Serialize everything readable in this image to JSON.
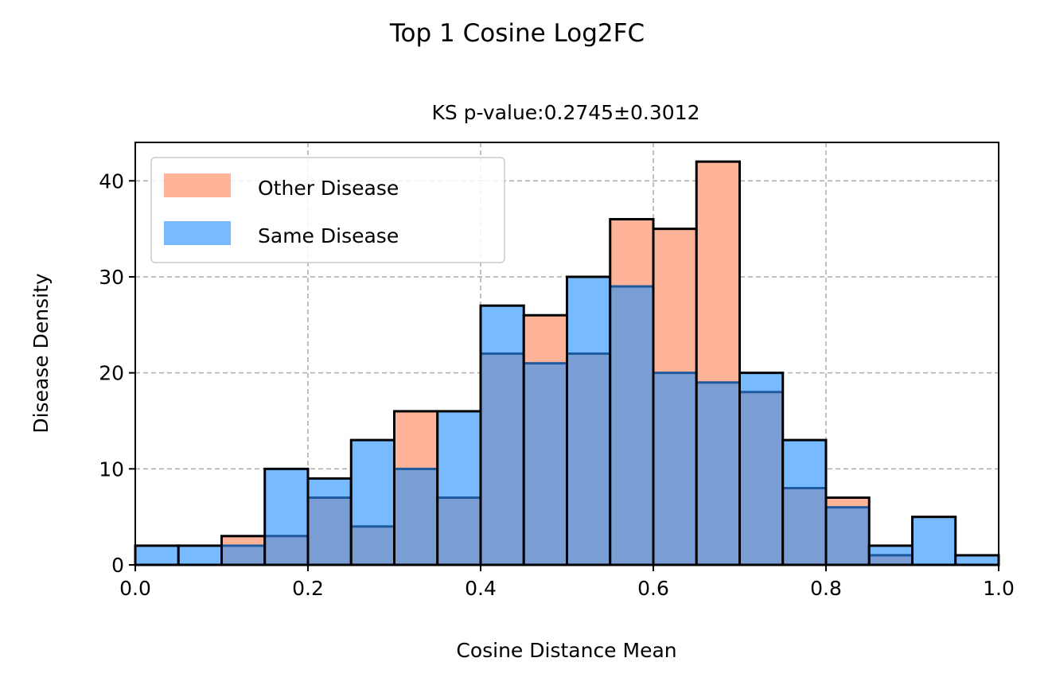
{
  "suptitle": "Top 1 Cosine Log2FC",
  "chart_data": {
    "type": "bar",
    "histogram": true,
    "title": "KS p-value:0.2745±0.3012",
    "xlabel": "Cosine Distance Mean",
    "ylabel": "Disease Density",
    "xlim": [
      0.0,
      1.0
    ],
    "ylim": [
      0,
      44
    ],
    "xticks": [
      "0.0",
      "0.2",
      "0.4",
      "0.6",
      "0.8",
      "1.0"
    ],
    "yticks": [
      "0",
      "10",
      "20",
      "30",
      "40"
    ],
    "bin_edges": [
      0.0,
      0.05,
      0.1,
      0.15,
      0.2,
      0.25,
      0.3,
      0.35,
      0.4,
      0.45,
      0.5,
      0.55,
      0.6,
      0.65,
      0.7,
      0.75,
      0.8,
      0.85,
      0.9,
      0.95,
      1.0
    ],
    "grid": true,
    "legend_position": "top-left",
    "series": [
      {
        "name": "Other Disease",
        "color": "#ffb399",
        "values": [
          0,
          0,
          3,
          3,
          7,
          4,
          16,
          7,
          22,
          26,
          22,
          36,
          35,
          42,
          18,
          8,
          7,
          1,
          0,
          0
        ]
      },
      {
        "name": "Same Disease",
        "color": "#78baff",
        "values": [
          2,
          2,
          2,
          10,
          9,
          13,
          10,
          16,
          27,
          21,
          30,
          29,
          20,
          19,
          20,
          13,
          6,
          2,
          5,
          1
        ]
      }
    ],
    "overlap_color": "#7a9dd4",
    "overlap_line_color": "#1f5aa0"
  }
}
